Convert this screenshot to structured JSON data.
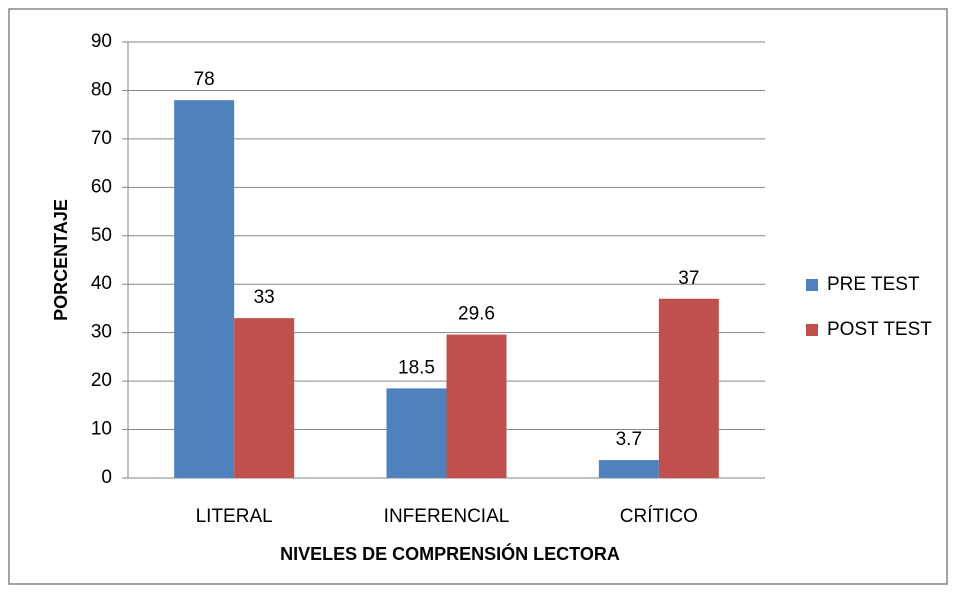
{
  "chart_data": {
    "type": "bar",
    "x_label": "NIVELES DE COMPRENSIÓN LECTORA",
    "y_label": "PORCENTAJE",
    "categories": [
      "LITERAL",
      "INFERENCIAL",
      "CRÍTICO"
    ],
    "series": [
      {
        "name": "PRE TEST",
        "color": "#4f81bd",
        "values": [
          78,
          18.5,
          3.7
        ]
      },
      {
        "name": "POST TEST",
        "color": "#c0504d",
        "values": [
          33,
          29.6,
          37
        ]
      }
    ],
    "ylim": [
      0,
      90
    ],
    "yticks": [
      0,
      10,
      20,
      30,
      40,
      50,
      60,
      70,
      80,
      90
    ],
    "grid": true,
    "legend": "right"
  }
}
